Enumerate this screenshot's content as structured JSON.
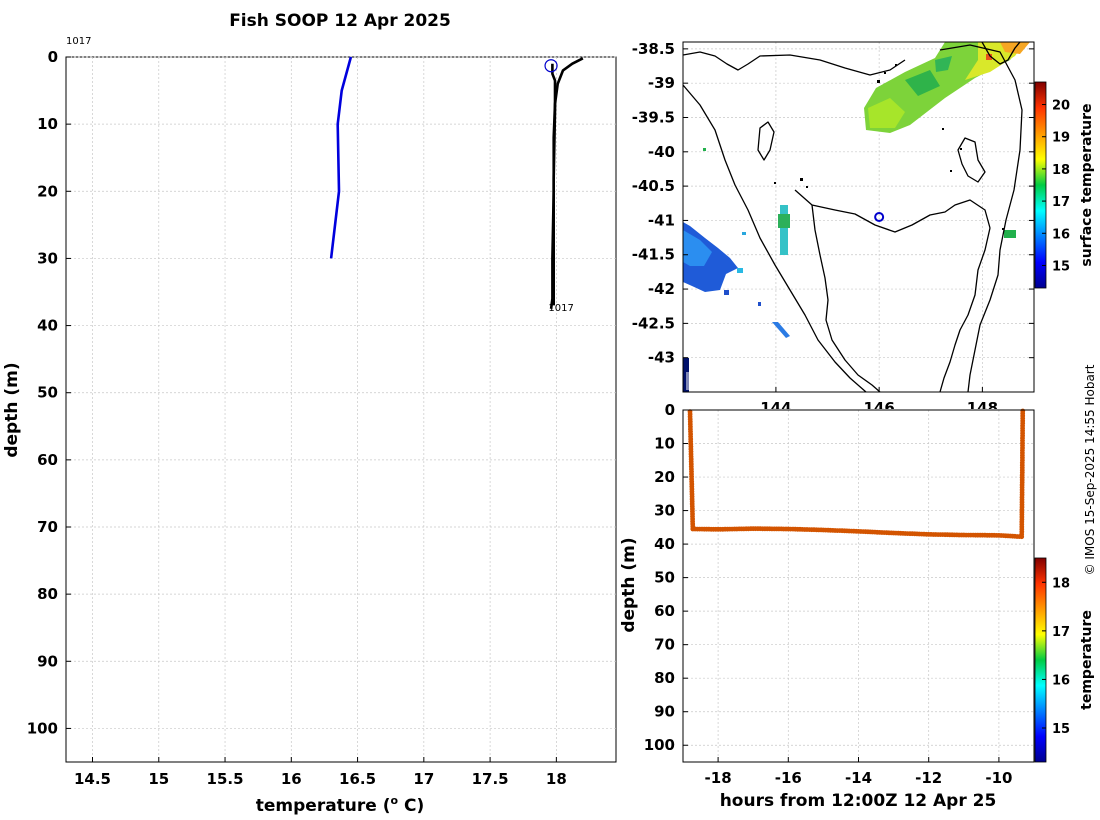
{
  "title": "Fish SOOP 12 Apr 2025",
  "credit": "© IMOS 15-Sep-2025 14:55 Hobart",
  "chart_data": [
    {
      "type": "line",
      "name": "temperature-profile",
      "xlabel": "temperature (",
      "xlabel_sup": "o",
      "xlabel_unit": " C)",
      "ylabel": "depth (m)",
      "xlim": [
        14.3,
        18.45
      ],
      "ylim": [
        0,
        105
      ],
      "xticks": [
        14.5,
        15,
        15.5,
        16,
        16.5,
        17,
        17.5,
        18
      ],
      "xtick_labels": [
        "14.5",
        "15",
        "15.5",
        "16",
        "16.5",
        "17",
        "17.5",
        "18"
      ],
      "yticks": [
        0,
        10,
        20,
        30,
        40,
        50,
        60,
        70,
        80,
        90,
        100
      ],
      "ytick_labels": [
        "0",
        "10",
        "20",
        "30",
        "40",
        "50",
        "60",
        "70",
        "80",
        "90",
        "100"
      ],
      "grid": true,
      "series": [
        {
          "name": "climatology",
          "color": "#0000dd",
          "points": [
            [
              16.45,
              0
            ],
            [
              16.38,
              5
            ],
            [
              16.35,
              10
            ],
            [
              16.36,
              20
            ],
            [
              16.3,
              30
            ]
          ]
        },
        {
          "name": "profile-1017",
          "color": "#000000",
          "points": [
            [
              18.2,
              0.2
            ],
            [
              18.12,
              1
            ],
            [
              18.05,
              2
            ],
            [
              18.01,
              4
            ],
            [
              17.99,
              7
            ],
            [
              17.98,
              12
            ],
            [
              17.98,
              20
            ],
            [
              17.97,
              30
            ],
            [
              17.97,
              36
            ],
            [
              17.96,
              37.5
            ]
          ]
        },
        {
          "name": "profile-1017-b",
          "color": "#000000",
          "points": [
            [
              17.97,
              1.0
            ],
            [
              17.97,
              2.5
            ],
            [
              17.99,
              3.5
            ],
            [
              17.99,
              8
            ],
            [
              17.98,
              18
            ],
            [
              17.98,
              28
            ],
            [
              17.98,
              37
            ]
          ]
        }
      ],
      "marker": {
        "x": 17.96,
        "y": 1.3
      },
      "annotations": [
        {
          "text": "1017",
          "x": 14.3,
          "y": -2.5
        },
        {
          "text": "1017",
          "x": 17.97,
          "y": 37.5
        }
      ]
    },
    {
      "type": "map",
      "name": "surface-temperature-map",
      "lon_range": [
        142.2,
        149.0
      ],
      "lat_range": [
        -43.5,
        -38.4
      ],
      "xticks": [
        144,
        146,
        148
      ],
      "xtick_labels": [
        "144",
        "146",
        "148"
      ],
      "yticks": [
        -38.5,
        -39,
        -39.5,
        -40,
        -40.5,
        -41,
        -41.5,
        -42,
        -42.5,
        -43
      ],
      "ytick_labels": [
        "-38.5",
        "-39",
        "-39.5",
        "-40",
        "-40.5",
        "-41",
        "-41.5",
        "-42",
        "-42.5",
        "-43"
      ],
      "position_marker": {
        "lon": 146.0,
        "lat": -40.95
      },
      "colorbar": {
        "label": "surface temperature",
        "min": 14.3,
        "max": 20.7,
        "ticks": [
          15,
          16,
          17,
          18,
          19,
          20
        ],
        "tick_labels": [
          "15",
          "16",
          "17",
          "18",
          "19",
          "20"
        ]
      }
    },
    {
      "type": "scatter",
      "name": "depth-time-section",
      "xlabel": "hours from 12:00Z 12 Apr 25",
      "ylabel": "depth (m)",
      "xlim": [
        -19.0,
        -9.0
      ],
      "ylim": [
        0,
        105
      ],
      "xticks": [
        -18,
        -16,
        -14,
        -12,
        -10
      ],
      "xtick_labels": [
        "-18",
        "-16",
        "-14",
        "-12",
        "-10"
      ],
      "yticks": [
        0,
        10,
        20,
        30,
        40,
        50,
        60,
        70,
        80,
        90,
        100
      ],
      "ytick_labels": [
        "0",
        "10",
        "20",
        "30",
        "40",
        "50",
        "60",
        "70",
        "80",
        "90",
        "100"
      ],
      "color": "#d35400",
      "track": [
        [
          -18.8,
          0.5
        ],
        [
          -18.72,
          35.5
        ],
        [
          -18.0,
          35.6
        ],
        [
          -17.0,
          35.4
        ],
        [
          -16.0,
          35.5
        ],
        [
          -15.0,
          35.8
        ],
        [
          -14.0,
          36.2
        ],
        [
          -13.0,
          36.7
        ],
        [
          -12.0,
          37.1
        ],
        [
          -11.0,
          37.3
        ],
        [
          -10.0,
          37.4
        ],
        [
          -9.35,
          37.8
        ],
        [
          -9.32,
          0.3
        ]
      ],
      "colorbar": {
        "label": "temperature",
        "min": 14.3,
        "max": 18.5,
        "ticks": [
          15,
          16,
          17,
          18
        ],
        "tick_labels": [
          "15",
          "16",
          "17",
          "18"
        ]
      }
    }
  ]
}
